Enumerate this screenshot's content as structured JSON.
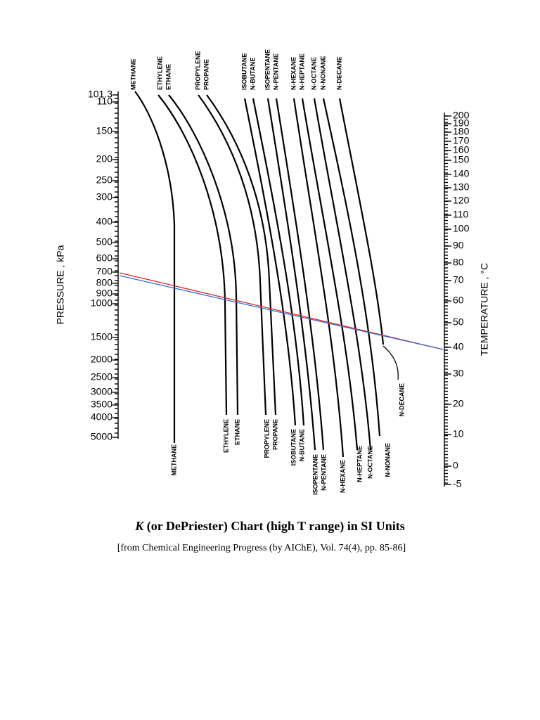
{
  "pressure_axis": {
    "label": "PRESSURE , kPa",
    "ticks": [
      "101.3",
      "110",
      "150",
      "200",
      "250",
      "300",
      "400",
      "500",
      "600",
      "700",
      "800",
      "900",
      "1000",
      "1500",
      "2000",
      "2500",
      "3000",
      "3500",
      "4000",
      "5000"
    ]
  },
  "temperature_axis": {
    "label": "TEMPERATURE , °C",
    "ticks": [
      "200",
      "190",
      "180",
      "170",
      "160",
      "150",
      "140",
      "130",
      "120",
      "110",
      "100",
      "90",
      "80",
      "70",
      "60",
      "50",
      "40",
      "30",
      "20",
      "10",
      "0",
      "-5"
    ]
  },
  "top_labels": [
    "METHANE",
    "ETHYLENE",
    "ETHANE",
    "PROPYLENE",
    "PROPANE",
    "ISOBUTANE",
    "N-BUTANE",
    "ISOPENTANE",
    "N-PENTANE",
    "N-HEXANE",
    "N-HEPTANE",
    "N-OCTANE",
    "N-NONANE",
    "N-DECANE"
  ],
  "bottom_labels": [
    "METHANE",
    "ETHYLENE",
    "ETHANE",
    "PROPYLENE",
    "PROPANE",
    "ISOBUTANE",
    "N-BUTANE",
    "ISOPENTANE",
    "N-PENTANE",
    "N-HEXANE",
    "N-HEPTANE",
    "N-OCTANE",
    "N-NONANE",
    "N-DECANE"
  ],
  "caption": {
    "title_italic": "K",
    "title_rest": "(or DePriester) Chart (high T range) in SI Units",
    "source": "[from Chemical Engineering Progress (by AIChE), Vol. 74(4), pp. 85-86]"
  }
}
